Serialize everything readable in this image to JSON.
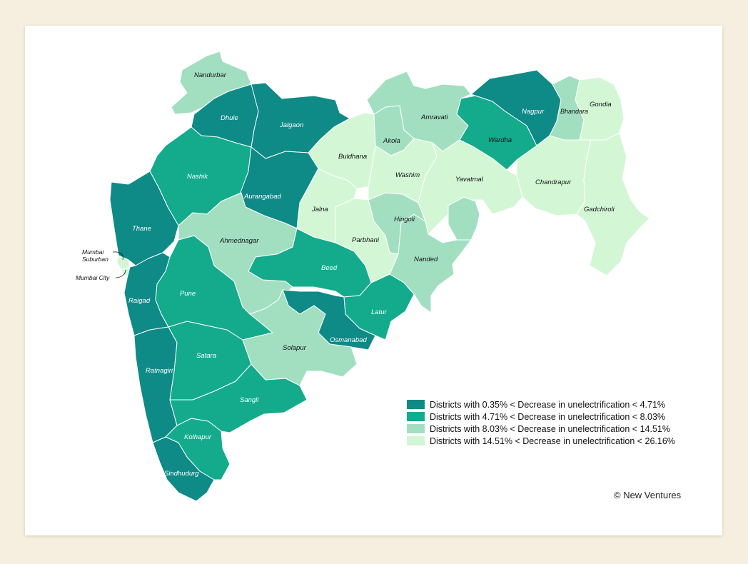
{
  "colors": {
    "c1": "#0e8a87",
    "c2": "#13ab8c",
    "c3": "#a2dfc1",
    "c4": "#d3f7d5"
  },
  "legend": [
    {
      "cls": "c1",
      "label": "Districts with 0.35% < Decrease in unelectrification < 4.71%"
    },
    {
      "cls": "c2",
      "label": "Districts with 4.71% < Decrease in unelectrification < 8.03%"
    },
    {
      "cls": "c3",
      "label": "Districts with 8.03% < Decrease in unelectrification < 14.51%"
    },
    {
      "cls": "c4",
      "label": "Districts with 14.51% < Decrease in unelectrification < 26.16%"
    }
  ],
  "credit": "© New Ventures",
  "districts": {
    "nandurbar": {
      "name": "Nandurbar",
      "cls": "c3"
    },
    "dhule": {
      "name": "Dhule",
      "cls": "c1"
    },
    "jalgaon": {
      "name": "Jalgaon",
      "cls": "c1"
    },
    "nashik": {
      "name": "Nashik",
      "cls": "c2"
    },
    "thane": {
      "name": "Thane",
      "cls": "c1"
    },
    "mumbai_suburban": {
      "name": "Mumbai Suburban",
      "cls": "c4"
    },
    "mumbai_city": {
      "name": "Mumbai City",
      "cls": "c4"
    },
    "raigad": {
      "name": "Raigad",
      "cls": "c1"
    },
    "ratnagiri": {
      "name": "Ratnagiri",
      "cls": "c1"
    },
    "sindhudurg": {
      "name": "Sindhudurg",
      "cls": "c1"
    },
    "kolhapur": {
      "name": "Kolhapur",
      "cls": "c2"
    },
    "sangli": {
      "name": "Sangli",
      "cls": "c2"
    },
    "satara": {
      "name": "Satara",
      "cls": "c2"
    },
    "pune": {
      "name": "Pune",
      "cls": "c2"
    },
    "ahmednagar": {
      "name": "Ahmednagar",
      "cls": "c3"
    },
    "aurangabad": {
      "name": "Aurangabad",
      "cls": "c1"
    },
    "beed": {
      "name": "Beed",
      "cls": "c2"
    },
    "osmanabad": {
      "name": "Osmanabad",
      "cls": "c1"
    },
    "solapur": {
      "name": "Solapur",
      "cls": "c3"
    },
    "latur": {
      "name": "Latur",
      "cls": "c2"
    },
    "nanded": {
      "name": "Nanded",
      "cls": "c3"
    },
    "hingoli": {
      "name": "Hingoli",
      "cls": "c3"
    },
    "parbhani": {
      "name": "Parbhani",
      "cls": "c4"
    },
    "jalna": {
      "name": "Jalna",
      "cls": "c4"
    },
    "buldhana": {
      "name": "Buldhana",
      "cls": "c4"
    },
    "akola": {
      "name": "Akola",
      "cls": "c3"
    },
    "washim": {
      "name": "Washim",
      "cls": "c4"
    },
    "amravati": {
      "name": "Amravati",
      "cls": "c3"
    },
    "yavatmal": {
      "name": "Yavatmal",
      "cls": "c4"
    },
    "wardha": {
      "name": "Wardha",
      "cls": "c2"
    },
    "nagpur": {
      "name": "Nagpur",
      "cls": "c1"
    },
    "bhandara": {
      "name": "Bhandara",
      "cls": "c3"
    },
    "gondia": {
      "name": "Gondia",
      "cls": "c4"
    },
    "chandrapur": {
      "name": "Chandrapur",
      "cls": "c4"
    },
    "gadchiroli": {
      "name": "Gadchiroli",
      "cls": "c4"
    }
  }
}
